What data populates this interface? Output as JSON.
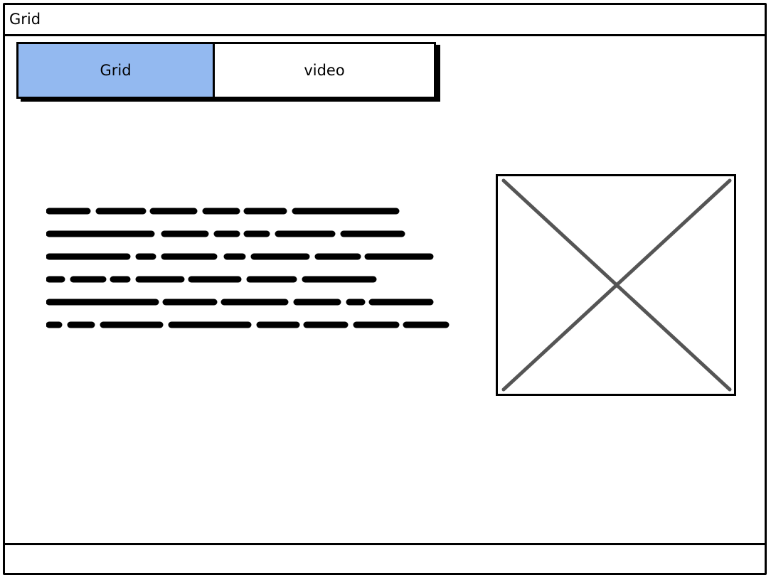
{
  "window": {
    "title": "Grid"
  },
  "tabs": [
    {
      "label": "Grid",
      "selected": true
    },
    {
      "label": "video",
      "selected": false
    }
  ],
  "content": {
    "paragraph_placeholder_lines": 6,
    "image_placeholder": "image-placeholder-icon"
  },
  "colors": {
    "active_tab": "#93b9f0",
    "border": "#000000",
    "placeholder_cross": "#555555"
  }
}
